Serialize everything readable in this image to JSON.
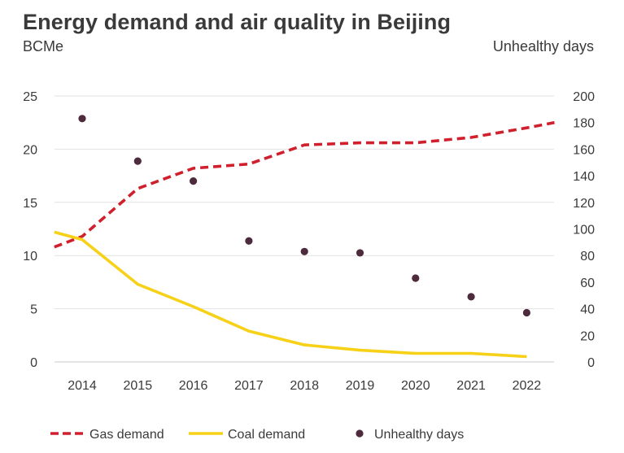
{
  "chart_data": {
    "type": "line",
    "title": "Energy demand and air quality in Beijing",
    "ylabel": "BCMe",
    "y2label": "Unhealthy days",
    "categories": [
      "2014",
      "2015",
      "2016",
      "2017",
      "2018",
      "2019",
      "2020",
      "2021",
      "2022"
    ],
    "ylim": [
      0,
      25
    ],
    "y2lim": [
      0,
      200
    ],
    "yticks": [
      "0",
      "5",
      "10",
      "15",
      "20",
      "25"
    ],
    "y2ticks": [
      "0",
      "20",
      "40",
      "60",
      "80",
      "100",
      "120",
      "140",
      "160",
      "180",
      "200"
    ],
    "grid": true,
    "series": [
      {
        "name": "Gas demand",
        "style": "dashed",
        "color": "#d0202e",
        "axis": "left",
        "x": [
          2013.5,
          2014,
          2015,
          2016,
          2017,
          2018,
          2019,
          2020,
          2021,
          2022,
          2022.5
        ],
        "values": [
          10.8,
          11.8,
          16.3,
          18.2,
          18.6,
          20.4,
          20.6,
          20.6,
          21.1,
          22.0,
          22.5
        ]
      },
      {
        "name": "Coal demand",
        "style": "solid",
        "color": "#f7d117",
        "axis": "left",
        "x": [
          2013.5,
          2014,
          2015,
          2016,
          2017,
          2018,
          2019,
          2020,
          2021,
          2022
        ],
        "values": [
          12.2,
          11.5,
          7.3,
          5.2,
          2.9,
          1.6,
          1.1,
          0.8,
          0.8,
          0.5
        ]
      },
      {
        "name": "Unhealthy days",
        "style": "points",
        "color": "#4d2a3c",
        "axis": "right",
        "x": [
          2014,
          2015,
          2016,
          2017,
          2018,
          2019,
          2020,
          2021,
          2022
        ],
        "values": [
          183,
          151,
          136,
          91,
          83,
          82,
          63,
          49,
          37
        ]
      }
    ],
    "legend": {
      "position": "bottom",
      "items": [
        "Gas demand",
        "Coal demand",
        "Unhealthy days"
      ]
    }
  }
}
